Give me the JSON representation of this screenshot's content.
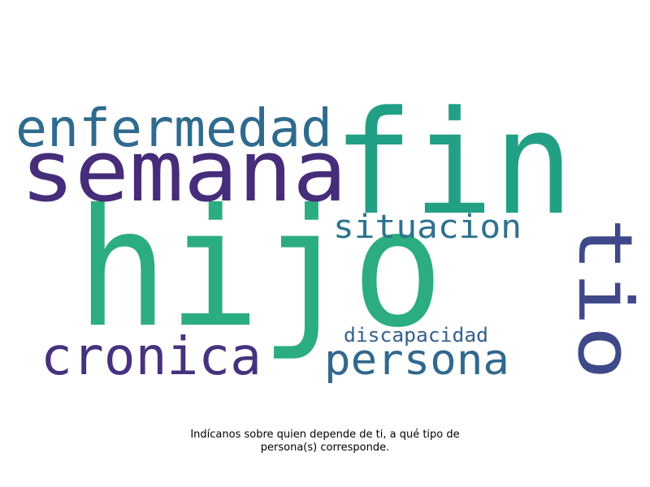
{
  "word_cloud": {
    "words": [
      {
        "text": "hijo",
        "color": "#2bad80"
      },
      {
        "text": "fin",
        "color": "#22a085"
      },
      {
        "text": "semana",
        "color": "#472c7a"
      },
      {
        "text": "enfermedad",
        "color": "#2f6b8e"
      },
      {
        "text": "tio",
        "color": "#3f4889"
      },
      {
        "text": "situacion",
        "color": "#2c728e"
      },
      {
        "text": "cronica",
        "color": "#46327e"
      },
      {
        "text": "persona",
        "color": "#31688e"
      },
      {
        "text": "discapacidad",
        "color": "#35608d"
      }
    ]
  },
  "caption": {
    "line1": "Indícanos sobre quien depende de ti, a qué tipo de",
    "line2": "persona(s) corresponde."
  }
}
